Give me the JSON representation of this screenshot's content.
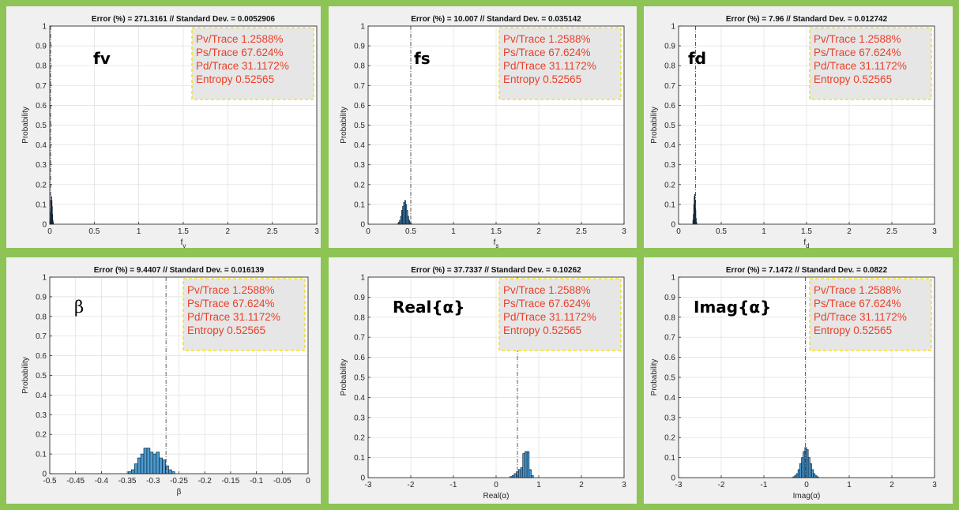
{
  "legend_stats": [
    "Pv/Trace 1.2588%",
    "Ps/Trace 67.624%",
    "Pd/Trace 31.1172%",
    "Entropy 0.52565"
  ],
  "colors": {
    "background": "#8dc455",
    "bar_fill": "#4c9bd0",
    "legend_text": "#e8412a",
    "legend_border": "#f2e12b"
  },
  "chart_data": [
    {
      "type": "bar",
      "title": "Error (%) = 271.3161 // Standard Dev. = 0.0052906",
      "panel_label": "fv",
      "label_style": "bold",
      "xlabel": "f_v",
      "ylabel": "Probability",
      "xlim": [
        0,
        3
      ],
      "ylim": [
        0,
        1
      ],
      "xticks": [
        0,
        0.5,
        1,
        1.5,
        2,
        2.5,
        3
      ],
      "xtick_labels": [
        "0",
        "0.5",
        "1",
        "1.5",
        "2",
        "2.5",
        "3"
      ],
      "yticks": [
        0,
        0.1,
        0.2,
        0.3,
        0.4,
        0.5,
        0.6,
        0.7,
        0.8,
        0.9,
        1
      ],
      "ytick_labels": [
        "0",
        "0.1",
        "0.2",
        "0.3",
        "0.4",
        "0.5",
        "0.6",
        "0.7",
        "0.8",
        "0.9",
        "1"
      ],
      "true_value": 0.01,
      "bin_width": 0.004,
      "bins": [
        0.006,
        0.01,
        0.014,
        0.018,
        0.022,
        0.026,
        0.03,
        0.034,
        0.038
      ],
      "values": [
        0.02,
        0.06,
        0.12,
        0.14,
        0.12,
        0.09,
        0.05,
        0.02,
        0.01
      ],
      "grid": true
    },
    {
      "type": "bar",
      "title": "Error (%) = 10.007 // Standard Dev. = 0.035142",
      "panel_label": "fs",
      "label_style": "bold",
      "xlabel": "f_s",
      "ylabel": "Probability",
      "xlim": [
        0,
        3
      ],
      "ylim": [
        0,
        1
      ],
      "xticks": [
        0,
        0.5,
        1,
        1.5,
        2,
        2.5,
        3
      ],
      "xtick_labels": [
        "0",
        "0.5",
        "1",
        "1.5",
        "2",
        "2.5",
        "3"
      ],
      "yticks": [
        0,
        0.1,
        0.2,
        0.3,
        0.4,
        0.5,
        0.6,
        0.7,
        0.8,
        0.9,
        1
      ],
      "ytick_labels": [
        "0",
        "0.1",
        "0.2",
        "0.3",
        "0.4",
        "0.5",
        "0.6",
        "0.7",
        "0.8",
        "0.9",
        "1"
      ],
      "true_value": 0.5,
      "bin_width": 0.012,
      "bins": [
        0.35,
        0.362,
        0.374,
        0.386,
        0.398,
        0.41,
        0.422,
        0.434,
        0.446,
        0.458,
        0.47,
        0.482,
        0.494,
        0.506
      ],
      "values": [
        0.003,
        0.01,
        0.02,
        0.04,
        0.07,
        0.09,
        0.11,
        0.12,
        0.1,
        0.07,
        0.04,
        0.02,
        0.008,
        0.002
      ],
      "grid": true
    },
    {
      "type": "bar",
      "title": "Error (%) = 7.96 // Standard Dev. = 0.012742",
      "panel_label": "fd",
      "label_style": "bold",
      "xlabel": "f_d",
      "ylabel": "Probability",
      "xlim": [
        0,
        3
      ],
      "ylim": [
        0,
        1
      ],
      "xticks": [
        0,
        0.5,
        1,
        1.5,
        2,
        2.5,
        3
      ],
      "xtick_labels": [
        "0",
        "0.5",
        "1",
        "1.5",
        "2",
        "2.5",
        "3"
      ],
      "yticks": [
        0,
        0.1,
        0.2,
        0.3,
        0.4,
        0.5,
        0.6,
        0.7,
        0.8,
        0.9,
        1
      ],
      "ytick_labels": [
        "0",
        "0.1",
        "0.2",
        "0.3",
        "0.4",
        "0.5",
        "0.6",
        "0.7",
        "0.8",
        "0.9",
        "1"
      ],
      "true_value": 0.2,
      "bin_width": 0.005,
      "bins": [
        0.17,
        0.175,
        0.18,
        0.185,
        0.19,
        0.195,
        0.2,
        0.205,
        0.21
      ],
      "values": [
        0.02,
        0.05,
        0.1,
        0.14,
        0.15,
        0.12,
        0.07,
        0.03,
        0.01
      ],
      "grid": true
    },
    {
      "type": "bar",
      "title": "Error (%) = 9.4407 // Standard Dev. = 0.016139",
      "panel_label": "β",
      "label_style": "greek",
      "xlabel": "β",
      "ylabel": "Probability",
      "xlim": [
        -0.5,
        0
      ],
      "ylim": [
        0,
        1
      ],
      "xticks": [
        -0.5,
        -0.45,
        -0.4,
        -0.35,
        -0.3,
        -0.25,
        -0.2,
        -0.15,
        -0.1,
        -0.05,
        0
      ],
      "xtick_labels": [
        "-0.5",
        "-0.45",
        "-0.4",
        "-0.35",
        "-0.3",
        "-0.25",
        "-0.2",
        "-0.15",
        "-0.1",
        "-0.05",
        "0"
      ],
      "yticks": [
        0,
        0.1,
        0.2,
        0.3,
        0.4,
        0.5,
        0.6,
        0.7,
        0.8,
        0.9,
        1
      ],
      "ytick_labels": [
        "0",
        "0.1",
        "0.2",
        "0.3",
        "0.4",
        "0.5",
        "0.6",
        "0.7",
        "0.8",
        "0.9",
        "1"
      ],
      "true_value": -0.275,
      "bin_width": 0.006,
      "bins": [
        -0.345,
        -0.339,
        -0.333,
        -0.327,
        -0.321,
        -0.315,
        -0.309,
        -0.303,
        -0.297,
        -0.291,
        -0.285,
        -0.279,
        -0.273,
        -0.267,
        -0.261
      ],
      "values": [
        0.01,
        0.02,
        0.05,
        0.08,
        0.1,
        0.13,
        0.13,
        0.11,
        0.1,
        0.11,
        0.08,
        0.07,
        0.04,
        0.02,
        0.01
      ],
      "grid": true
    },
    {
      "type": "bar",
      "title": "Error (%) = 37.7337 // Standard Dev. = 0.10262",
      "panel_label": "Real{α}",
      "label_style": "bold",
      "xlabel": "Real(α)",
      "ylabel": "Probability",
      "xlim": [
        -3,
        3
      ],
      "ylim": [
        0,
        1
      ],
      "xticks": [
        -3,
        -2,
        -1,
        0,
        1,
        2,
        3
      ],
      "xtick_labels": [
        "-3",
        "-2",
        "-1",
        "0",
        "1",
        "2",
        "3"
      ],
      "yticks": [
        0,
        0.1,
        0.2,
        0.3,
        0.4,
        0.5,
        0.6,
        0.7,
        0.8,
        0.9,
        1
      ],
      "ytick_labels": [
        "0",
        "0.1",
        "0.2",
        "0.3",
        "0.4",
        "0.5",
        "0.6",
        "0.7",
        "0.8",
        "0.9",
        "1"
      ],
      "true_value": 0.5,
      "bin_width": 0.05,
      "bins": [
        0.35,
        0.4,
        0.45,
        0.5,
        0.55,
        0.6,
        0.65,
        0.7,
        0.75,
        0.8,
        0.85
      ],
      "values": [
        0.005,
        0.01,
        0.02,
        0.03,
        0.04,
        0.05,
        0.12,
        0.13,
        0.13,
        0.04,
        0.01
      ],
      "grid": true
    },
    {
      "type": "bar",
      "title": "Error (%) = 7.1472 // Standard Dev. = 0.0822",
      "panel_label": "Imag{α}",
      "label_style": "bold",
      "xlabel": "Imag(α)",
      "ylabel": "Probability",
      "xlim": [
        -3,
        3
      ],
      "ylim": [
        0,
        1
      ],
      "xticks": [
        -3,
        -2,
        -1,
        0,
        1,
        2,
        3
      ],
      "xtick_labels": [
        "-3",
        "-2",
        "-1",
        "0",
        "1",
        "2",
        "3"
      ],
      "yticks": [
        0,
        0.1,
        0.2,
        0.3,
        0.4,
        0.5,
        0.6,
        0.7,
        0.8,
        0.9,
        1
      ],
      "ytick_labels": [
        "0",
        "0.1",
        "0.2",
        "0.3",
        "0.4",
        "0.5",
        "0.6",
        "0.7",
        "0.8",
        "0.9",
        "1"
      ],
      "true_value": -0.03,
      "bin_width": 0.04,
      "bins": [
        -0.3,
        -0.26,
        -0.22,
        -0.18,
        -0.14,
        -0.1,
        -0.06,
        -0.02,
        0.02,
        0.06,
        0.1,
        0.14,
        0.18,
        0.22,
        0.26
      ],
      "values": [
        0.004,
        0.01,
        0.02,
        0.04,
        0.07,
        0.1,
        0.13,
        0.15,
        0.14,
        0.1,
        0.07,
        0.04,
        0.02,
        0.01,
        0.004
      ],
      "grid": true
    }
  ]
}
